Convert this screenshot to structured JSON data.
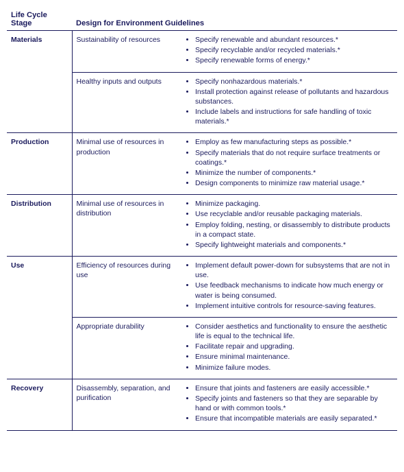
{
  "headers": {
    "stage": "Life Cycle Stage",
    "guidelines": "Design for Environment Guidelines"
  },
  "rows": [
    {
      "stage": "Materials",
      "groups": [
        {
          "category": "Sustainability of resources",
          "items": [
            "Specify renewable and abundant resources.*",
            "Specify recyclable and/or recycled materials.*",
            "Specify renewable forms of energy.*"
          ]
        },
        {
          "category": "Healthy inputs and outputs",
          "items": [
            "Specify nonhazardous materials.*",
            "Install protection against release of pollutants and hazardous substances.",
            "Include labels and instructions for safe handling of toxic materials.*"
          ]
        }
      ]
    },
    {
      "stage": "Production",
      "groups": [
        {
          "category": "Minimal use of resources in production",
          "items": [
            "Employ as few manufacturing steps as possible.*",
            "Specify materials that do not require surface treatments or coatings.*",
            "Minimize the number of components.*",
            "Design components to minimize raw material usage.*"
          ]
        }
      ]
    },
    {
      "stage": "Distribution",
      "groups": [
        {
          "category": "Minimal use of resources in distribution",
          "items": [
            "Minimize packaging.",
            "Use recyclable and/or reusable packaging materials.",
            "Employ folding, nesting, or disassembly to distribute products in a compact state.",
            "Specify lightweight materials and components.*"
          ]
        }
      ]
    },
    {
      "stage": "Use",
      "groups": [
        {
          "category": "Efficiency of resources during use",
          "items": [
            "Implement default power-down for subsystems that are not in use.",
            "Use feedback mechanisms to indicate how much energy or water is being consumed.",
            "Implement intuitive controls for resource-saving features."
          ]
        },
        {
          "category": "Appropriate durability",
          "items": [
            "Consider aesthetics and functionality to ensure the aesthetic life is equal to the technical life.",
            "Facilitate repair and upgrading.",
            "Ensure minimal maintenance.",
            "Minimize failure modes."
          ]
        }
      ]
    },
    {
      "stage": "Recovery",
      "groups": [
        {
          "category": "Disassembly, separation, and purification",
          "items": [
            "Ensure that joints and fasteners are easily accessible.*",
            "Specify joints and fasteners so that they are separable by hand or with common tools.*",
            "Ensure that incompatible materials are easily separated.*"
          ]
        }
      ]
    }
  ]
}
